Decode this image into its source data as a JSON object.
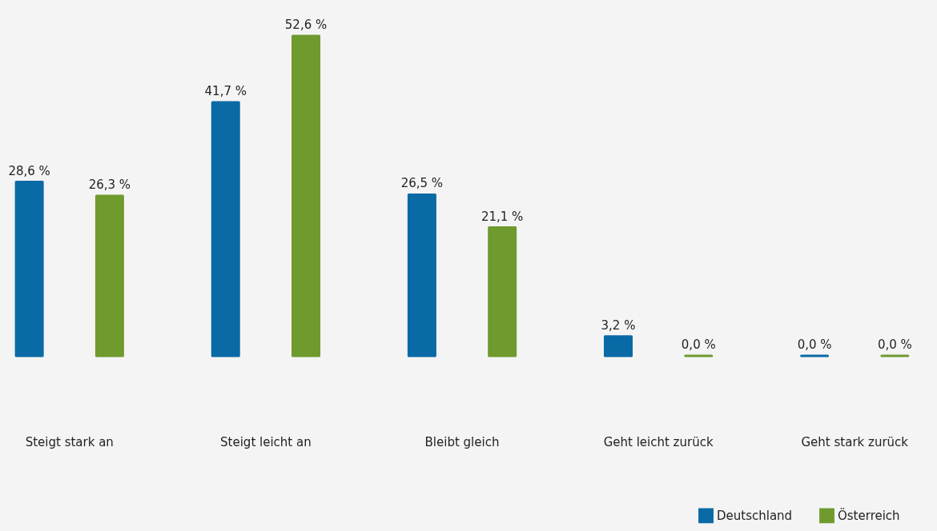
{
  "chart_data": {
    "type": "bar",
    "categories": [
      "Steigt stark an",
      "Steigt leicht an",
      "Bleibt gleich",
      "Geht leicht zurück",
      "Geht stark zurück"
    ],
    "series": [
      {
        "name": "Deutschland",
        "color": "#0a6aa6",
        "values": [
          28.6,
          41.7,
          26.5,
          3.2,
          0.0
        ],
        "value_labels": [
          "28,6 %",
          "41,7 %",
          "26,5 %",
          "3,2 %",
          "0,0 %"
        ]
      },
      {
        "name": "Österreich",
        "color": "#6f9a2e",
        "values": [
          26.3,
          52.6,
          21.1,
          0.0,
          0.0
        ],
        "value_labels": [
          "26,3 %",
          "52,6 %",
          "21,1 %",
          "0,0 %",
          "0,0 %"
        ]
      }
    ],
    "legend": "bottom right"
  }
}
